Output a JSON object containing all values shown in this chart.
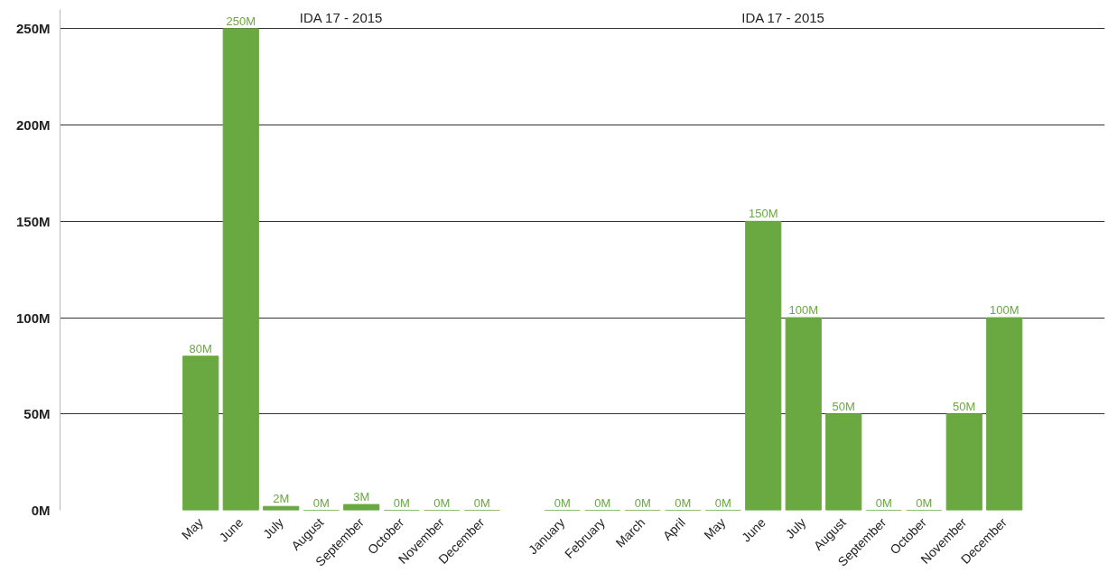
{
  "chart_data": {
    "type": "bar",
    "annotations": [
      "IDA 17 - 2015",
      "IDA 17 - 2015"
    ],
    "categories": [
      null,
      null,
      null,
      "May",
      "June",
      "July",
      "August",
      "September",
      "October",
      "November",
      "December",
      null,
      "January",
      "February",
      "March",
      "April",
      "May",
      "June",
      "July",
      "August",
      "September",
      "October",
      "November",
      "December",
      null,
      null
    ],
    "values": [
      null,
      null,
      null,
      80,
      250,
      2,
      0,
      3,
      0,
      0,
      0,
      null,
      0,
      0,
      0,
      0,
      0,
      150,
      100,
      50,
      0,
      0,
      50,
      100,
      null,
      null
    ],
    "value_labels": [
      null,
      null,
      null,
      "80M",
      "250M",
      "2M",
      "0M",
      "3M",
      "0M",
      "0M",
      "0M",
      null,
      "0M",
      "0M",
      "0M",
      "0M",
      "0M",
      "150M",
      "100M",
      "50M",
      "0M",
      "0M",
      "50M",
      "100M",
      null,
      null
    ],
    "color": "#6aa842",
    "ylim": [
      0,
      260
    ],
    "yticks": [
      {
        "value": 0,
        "label": "0M"
      },
      {
        "value": 50,
        "label": "50M"
      },
      {
        "value": 100,
        "label": "100M"
      },
      {
        "value": 150,
        "label": "150M"
      },
      {
        "value": 200,
        "label": "200M"
      },
      {
        "value": 250,
        "label": "250M"
      }
    ],
    "grid": "y"
  }
}
